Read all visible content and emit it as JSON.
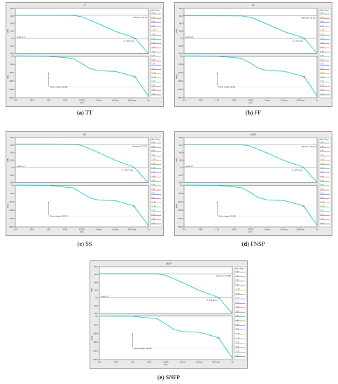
{
  "captions": [
    {
      "letter": "a",
      "name": "TT"
    },
    {
      "letter": "b",
      "name": "FF"
    },
    {
      "letter": "c",
      "name": "SS"
    },
    {
      "letter": "d",
      "name": "FNSP"
    },
    {
      "letter": "e",
      "name": "SNFP"
    }
  ],
  "colors": {
    "trace": "#1ec8d2",
    "frame": "#9a9a9a",
    "plot_bg": "#ffffff",
    "panel_bg": "#e9e9e9",
    "grid": "#4a4a4a"
  },
  "chart_data": [
    {
      "type": "line",
      "title": "TT",
      "x_ticks": [
        "10.0",
        "100.0",
        "1.0k",
        "10.0k",
        "100.0k",
        "1.0meg",
        "10.0meg",
        "100.0meg",
        "1g"
      ],
      "x_unit": "(Hz)",
      "x_log": true,
      "gain": {
        "axis_label": "(dB)",
        "y_ticks": [
          "80.0",
          "60.0",
          "40.0",
          "20.0",
          "0.0",
          "-20.0",
          "-40.0"
        ],
        "ylim": [
          -40,
          80
        ],
        "markers": [
          {
            "label": "Maximum: 61.56",
            "value_db": 61.56
          },
          {
            "label": "Level: 0.0",
            "value_db": 0
          },
          {
            "label": "fc: 161.5meg",
            "x_hz": 161500000
          }
        ],
        "series": [
          {
            "x": [
              10,
              1000,
              30000,
              100000,
              1000000,
              10000000,
              100000000,
              161500000,
              1000000000
            ],
            "y": [
              61.56,
              61.56,
              61.4,
              57.5,
              39.0,
              19.0,
              4.0,
              0.0,
              -40.0
            ]
          }
        ]
      },
      "phase": {
        "axis_label": "(deg)",
        "y_ticks": [
          "0.0",
          "-50.0",
          "-100.0",
          "-150.0",
          "-200.0",
          "-250.0"
        ],
        "ylim": [
          -250,
          0
        ],
        "markers": [
          {
            "label": "Phase margin: 53.956",
            "value_deg": 53.956
          }
        ],
        "series": [
          {
            "x": [
              10,
              1000,
              30000,
              100000,
              300000,
              1000000,
              10000000,
              100000000,
              161500000,
              1000000000
            ],
            "y": [
              0,
              -1,
              -15,
              -45,
              -75,
              -88,
              -92,
              -118,
              -126,
              -240
            ]
          }
        ]
      },
      "legend_header": "(dB) / (Deg)",
      "legend": [
        "tt_db",
        "tt_ph",
        "ff_db",
        "ff_ph",
        "ss_db",
        "ss_ph",
        "fs_db",
        "fs_ph",
        "sf_db",
        "sf_ph"
      ]
    },
    {
      "type": "line",
      "title": "FF",
      "x_ticks": [
        "10.0",
        "100.0",
        "1.0k",
        "10.0k",
        "100.0k",
        "1.0meg",
        "10.0meg",
        "100.0meg",
        "1g"
      ],
      "x_unit": "(Hz)",
      "x_log": true,
      "gain": {
        "axis_label": "(dB)",
        "y_ticks": [
          "80.0",
          "60.0",
          "40.0",
          "20.0",
          "0.0",
          "-20.0",
          "-40.0"
        ],
        "ylim": [
          -40,
          80
        ],
        "markers": [
          {
            "label": "Maximum: 60.116",
            "value_db": 60.116
          },
          {
            "label": "Level: 0.0",
            "value_db": 0
          },
          {
            "label": "fc: 172.0meg",
            "x_hz": 172000000
          }
        ],
        "series": [
          {
            "x": [
              10,
              1000,
              30000,
              100000,
              1000000,
              10000000,
              100000000,
              172000000,
              1000000000
            ],
            "y": [
              60.1,
              60.1,
              59.9,
              56.2,
              38.0,
              18.5,
              4.5,
              0.0,
              -40.0
            ]
          }
        ]
      },
      "phase": {
        "axis_label": "(deg)",
        "y_ticks": [
          "0.0",
          "-50.0",
          "-100.0",
          "-150.0",
          "-200.0",
          "-250.0"
        ],
        "ylim": [
          -250,
          0
        ],
        "markers": [
          {
            "label": "Phase margin: 55.08",
            "value_deg": 55.08
          }
        ],
        "series": [
          {
            "x": [
              10,
              1000,
              30000,
              100000,
              300000,
              1000000,
              10000000,
              100000000,
              172000000,
              1000000000
            ],
            "y": [
              0,
              -1,
              -14,
              -43,
              -73,
              -87,
              -91,
              -117,
              -125,
              -238
            ]
          }
        ]
      },
      "legend_header": "(dB) / (Deg)",
      "legend": [
        "tt_db",
        "tt_ph",
        "ff_db",
        "ff_ph",
        "ss_db",
        "ss_ph",
        "fs_db",
        "fs_ph",
        "sf_db",
        "sf_ph"
      ]
    },
    {
      "type": "line",
      "title": "SS",
      "x_ticks": [
        "10.0",
        "100.0",
        "1.0k",
        "10.0k",
        "100.0k",
        "1.0meg",
        "10.0meg",
        "100.0meg",
        "1g"
      ],
      "x_unit": "(Hz)",
      "x_log": true,
      "gain": {
        "axis_label": "(dB)",
        "y_ticks": [
          "80.0",
          "60.0",
          "40.0",
          "20.0",
          "0.0",
          "-20.0",
          "-40.0"
        ],
        "ylim": [
          -40,
          80
        ],
        "markers": [
          {
            "label": "Maximum: 62.731",
            "value_db": 62.731
          },
          {
            "label": "Level: 0.0",
            "value_db": 0
          },
          {
            "label": "fc: 142.4meg",
            "x_hz": 142400000
          }
        ],
        "series": [
          {
            "x": [
              10,
              1000,
              30000,
              100000,
              1000000,
              10000000,
              100000000,
              142400000,
              1000000000
            ],
            "y": [
              62.7,
              62.7,
              62.5,
              58.5,
              40.0,
              19.5,
              3.5,
              0.0,
              -40.0
            ]
          }
        ]
      },
      "phase": {
        "axis_label": "(deg)",
        "y_ticks": [
          "0.0",
          "-50.0",
          "-100.0",
          "-150.0",
          "-200.0",
          "-250.0"
        ],
        "ylim": [
          -250,
          0
        ],
        "markers": [
          {
            "label": "Phase margin: 52.373",
            "value_deg": 52.373
          }
        ],
        "series": [
          {
            "x": [
              10,
              1000,
              30000,
              100000,
              300000,
              1000000,
              10000000,
              100000000,
              142400000,
              1000000000
            ],
            "y": [
              0,
              -1,
              -16,
              -47,
              -76,
              -89,
              -93,
              -120,
              -128,
              -242
            ]
          }
        ]
      },
      "legend_header": "(dB) / (Deg)",
      "legend": [
        "tt_db",
        "tt_ph",
        "ff_db",
        "ff_ph",
        "ss_db",
        "ss_ph",
        "fs_db",
        "fs_ph",
        "sf_db",
        "sf_ph"
      ]
    },
    {
      "type": "line",
      "title": "FNSP",
      "x_ticks": [
        "10.0",
        "100.0",
        "1.0k",
        "10.0k",
        "100.0k",
        "1.0meg",
        "10.0meg",
        "100.0meg",
        "1g"
      ],
      "x_unit": "(Hz)",
      "x_log": true,
      "gain": {
        "axis_label": "(dB)",
        "y_ticks": [
          "80.0",
          "60.0",
          "40.0",
          "20.0",
          "0.0",
          "-20.0",
          "-40.0"
        ],
        "ylim": [
          -40,
          80
        ],
        "markers": [
          {
            "label": "Maximum: 61.113",
            "value_db": 61.113
          },
          {
            "label": "Level: 0.0",
            "value_db": 0
          },
          {
            "label": "fc: 158.6meg",
            "x_hz": 158600000
          }
        ],
        "series": [
          {
            "x": [
              10,
              1000,
              30000,
              100000,
              1000000,
              10000000,
              100000000,
              158600000,
              1000000000
            ],
            "y": [
              61.1,
              61.1,
              60.9,
              57.0,
              38.8,
              18.8,
              4.0,
              0.0,
              -40.0
            ]
          }
        ]
      },
      "phase": {
        "axis_label": "(deg)",
        "y_ticks": [
          "0.0",
          "-50.0",
          "-100.0",
          "-150.0",
          "-200.0",
          "-250.0"
        ],
        "ylim": [
          -250,
          0
        ],
        "markers": [
          {
            "label": "Phase margin: 53.494",
            "value_deg": 53.494
          }
        ],
        "series": [
          {
            "x": [
              10,
              1000,
              30000,
              100000,
              300000,
              1000000,
              10000000,
              100000000,
              158600000,
              1000000000
            ],
            "y": [
              0,
              -1,
              -15,
              -45,
              -75,
              -88,
              -92,
              -118,
              -126,
              -240
            ]
          }
        ]
      },
      "legend_header": "(dB) / (Deg)",
      "legend": [
        "tt_db",
        "tt_ph",
        "ff_db",
        "ff_ph",
        "ss_db",
        "ss_ph",
        "fs_db",
        "fs_ph",
        "sf_db",
        "sf_ph"
      ]
    },
    {
      "type": "line",
      "title": "SNFP",
      "x_ticks": [
        "10.0",
        "100.0",
        "1.0k",
        "10.0k",
        "100.0k",
        "1.0meg",
        "10.0meg",
        "100.0meg",
        "1g"
      ],
      "x_unit": "(Hz)",
      "x_log": true,
      "gain": {
        "axis_label": "(dB)",
        "y_ticks": [
          "80.0",
          "60.0",
          "40.0",
          "20.0",
          "0.0",
          "-20.0",
          "-40.0"
        ],
        "ylim": [
          -40,
          80
        ],
        "markers": [
          {
            "label": "Maximum: 61.989",
            "value_db": 61.989
          },
          {
            "label": "Level: 0.0",
            "value_db": 0
          },
          {
            "label": "fc: 152.3meg",
            "x_hz": 152300000
          }
        ],
        "series": [
          {
            "x": [
              10,
              1000,
              30000,
              100000,
              1000000,
              10000000,
              100000000,
              152300000,
              1000000000
            ],
            "y": [
              62.0,
              62.0,
              61.8,
              57.8,
              39.5,
              19.2,
              3.8,
              0.0,
              -40.0
            ]
          }
        ]
      },
      "phase": {
        "axis_label": "(deg)",
        "y_ticks": [
          "0.0",
          "-50.0",
          "-100.0",
          "-150.0",
          "-200.0",
          "-250.0"
        ],
        "ylim": [
          -250,
          0
        ],
        "markers": [
          {
            "label": "Phase margin: 52.949",
            "value_deg": 52.949
          }
        ],
        "series": [
          {
            "x": [
              10,
              1000,
              30000,
              100000,
              300000,
              1000000,
              10000000,
              100000000,
              152300000,
              1000000000
            ],
            "y": [
              0,
              -1,
              -15,
              -46,
              -76,
              -89,
              -93,
              -119,
              -127,
              -241
            ]
          }
        ]
      },
      "legend_header": "(dB) / (Deg)",
      "legend": [
        "tt_db",
        "tt_ph",
        "ff_db",
        "ff_ph",
        "ss_db",
        "ss_ph",
        "fs_db",
        "fs_ph",
        "sf_db",
        "sf_ph"
      ]
    }
  ]
}
